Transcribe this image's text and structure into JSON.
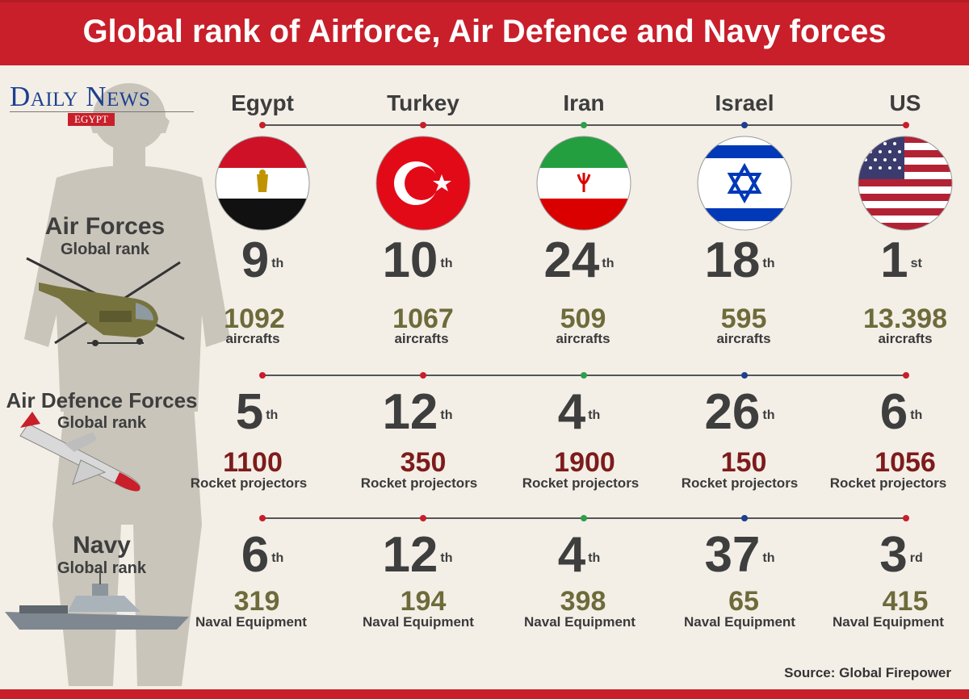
{
  "header": {
    "title": "Global rank of Airforce, Air Defence and Navy forces"
  },
  "logo": {
    "name": "Daily News",
    "sub": "EGYPT"
  },
  "source": "Source: Global Firepower",
  "colors": {
    "accent": "#c81f2a",
    "olive": "#6d6b3a",
    "maroon": "#7e1b1b",
    "text": "#3e3e3e"
  },
  "sections": {
    "air": {
      "title": "Air Forces",
      "subtitle": "Global rank"
    },
    "defence": {
      "title": "Air Defence Forces",
      "subtitle": "Global rank"
    },
    "navy": {
      "title": "Navy",
      "subtitle": "Global rank"
    }
  },
  "countries": [
    {
      "name": "Egypt",
      "flag": "egypt-flag",
      "air_rank": "9",
      "air_suffix": "th",
      "aircrafts": "1092",
      "aircrafts_label": "aircrafts",
      "def_rank": "5",
      "def_suffix": "th",
      "rockets": "1100",
      "rockets_label": "Rocket projectors",
      "navy_rank": "6",
      "navy_suffix": "th",
      "naval": "319",
      "naval_label": "Naval Equipment"
    },
    {
      "name": "Turkey",
      "flag": "turkey-flag",
      "air_rank": "10",
      "air_suffix": "th",
      "aircrafts": "1067",
      "aircrafts_label": "aircrafts",
      "def_rank": "12",
      "def_suffix": "th",
      "rockets": "350",
      "rockets_label": "Rocket projectors",
      "navy_rank": "12",
      "navy_suffix": "th",
      "naval": "194",
      "naval_label": "Naval Equipment"
    },
    {
      "name": "Iran",
      "flag": "iran-flag",
      "air_rank": "24",
      "air_suffix": "th",
      "aircrafts": "509",
      "aircrafts_label": "aircrafts",
      "def_rank": "4",
      "def_suffix": "th",
      "rockets": "1900",
      "rockets_label": "Rocket projectors",
      "navy_rank": "4",
      "navy_suffix": "th",
      "naval": "398",
      "naval_label": "Naval Equipment"
    },
    {
      "name": "Israel",
      "flag": "israel-flag",
      "air_rank": "18",
      "air_suffix": "th",
      "aircrafts": "595",
      "aircrafts_label": "aircrafts",
      "def_rank": "26",
      "def_suffix": "th",
      "rockets": "150",
      "rockets_label": "Rocket projectors",
      "navy_rank": "37",
      "navy_suffix": "th",
      "naval": "65",
      "naval_label": "Naval Equipment"
    },
    {
      "name": "US",
      "flag": "us-flag",
      "air_rank": "1",
      "air_suffix": "st",
      "aircrafts": "13.398",
      "aircrafts_label": "aircrafts",
      "def_rank": "6",
      "def_suffix": "th",
      "rockets": "1056",
      "rockets_label": "Rocket projectors",
      "navy_rank": "3",
      "navy_suffix": "rd",
      "naval": "415",
      "naval_label": "Naval Equipment"
    }
  ]
}
